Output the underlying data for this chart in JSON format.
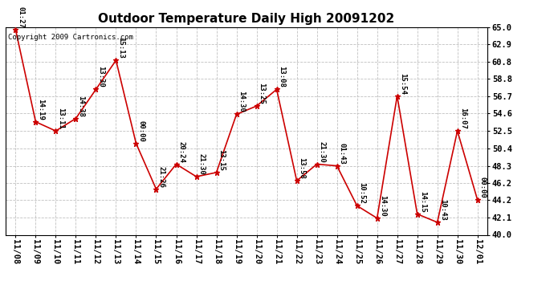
{
  "title": "Outdoor Temperature Daily High 20091202",
  "copyright": "Copyright 2009 Cartronics.com",
  "dates": [
    "11/08",
    "11/09",
    "11/10",
    "11/11",
    "11/12",
    "11/13",
    "11/14",
    "11/15",
    "11/16",
    "11/17",
    "11/18",
    "11/19",
    "11/20",
    "11/21",
    "11/22",
    "11/23",
    "11/24",
    "11/25",
    "11/26",
    "11/27",
    "11/28",
    "11/29",
    "11/30",
    "12/01"
  ],
  "values": [
    64.7,
    53.6,
    52.5,
    54.0,
    57.5,
    61.0,
    51.0,
    45.5,
    48.5,
    47.0,
    47.5,
    54.5,
    55.5,
    57.5,
    46.5,
    48.5,
    48.3,
    43.5,
    42.0,
    56.7,
    42.5,
    41.5,
    52.5,
    44.2
  ],
  "time_labels": [
    "01:27",
    "14:19",
    "13:11",
    "14:38",
    "13:30",
    "15:13",
    "00:00",
    "21:26",
    "20:24",
    "21:30",
    "13:15",
    "14:30",
    "13:25",
    "13:08",
    "13:58",
    "21:30",
    "01:43",
    "10:52",
    "14:30",
    "15:54",
    "14:15",
    "10:43",
    "16:07",
    "00:00"
  ],
  "ylim": [
    40.0,
    65.0
  ],
  "yticks": [
    40.0,
    42.1,
    44.2,
    46.2,
    48.3,
    50.4,
    52.5,
    54.6,
    56.7,
    58.8,
    60.8,
    62.9,
    65.0
  ],
  "line_color": "#cc0000",
  "marker_color": "#cc0000",
  "bg_color": "#ffffff",
  "grid_color": "#c0c0c0",
  "title_fontsize": 11,
  "label_fontsize": 6.5,
  "tick_fontsize": 7.5,
  "copyright_fontsize": 6.5
}
